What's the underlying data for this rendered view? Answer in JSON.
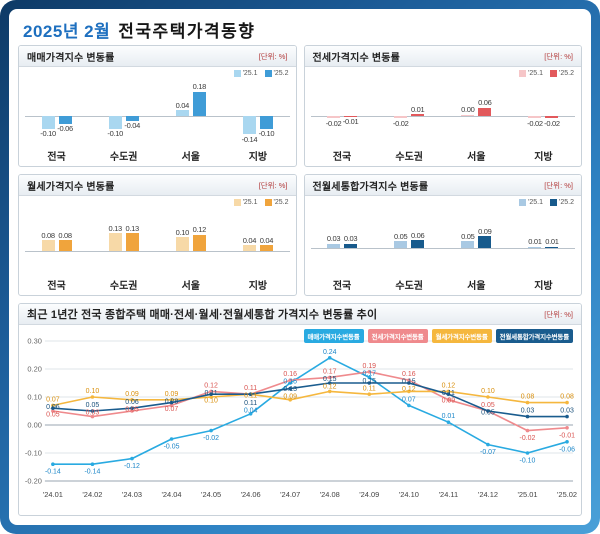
{
  "page": {
    "title_month": "2025년 2월",
    "title_main": "전국주택가격동향"
  },
  "chart_data": [
    {
      "type": "bar",
      "title": "매매가격지수 변동률",
      "unit": "[단위: %]",
      "categories": [
        "전국",
        "수도권",
        "서울",
        "지방"
      ],
      "series": [
        {
          "name": "'25.1",
          "values": [
            -0.1,
            -0.1,
            0.04,
            -0.14
          ]
        },
        {
          "name": "'25.2",
          "values": [
            -0.06,
            -0.04,
            0.18,
            -0.1
          ]
        }
      ],
      "colors": [
        "#a9d7f0",
        "#3f9cd7"
      ]
    },
    {
      "type": "bar",
      "title": "전세가격지수 변동률",
      "unit": "[단위: %]",
      "categories": [
        "전국",
        "수도권",
        "서울",
        "지방"
      ],
      "series": [
        {
          "name": "'25.1",
          "values": [
            -0.02,
            -0.02,
            0.0,
            -0.02
          ]
        },
        {
          "name": "'25.2",
          "values": [
            -0.01,
            0.01,
            0.06,
            -0.02
          ]
        }
      ],
      "colors": [
        "#f6c6c8",
        "#e2595c"
      ]
    },
    {
      "type": "bar",
      "title": "월세가격지수 변동률",
      "unit": "[단위: %]",
      "categories": [
        "전국",
        "수도권",
        "서울",
        "지방"
      ],
      "series": [
        {
          "name": "'25.1",
          "values": [
            0.08,
            0.13,
            0.1,
            0.04
          ]
        },
        {
          "name": "'25.2",
          "values": [
            0.08,
            0.13,
            0.12,
            0.04
          ]
        }
      ],
      "colors": [
        "#f7d9a7",
        "#f0a43c"
      ]
    },
    {
      "type": "bar",
      "title": "전월세통합가격지수 변동률",
      "unit": "[단위: %]",
      "categories": [
        "전국",
        "수도권",
        "서울",
        "지방"
      ],
      "series": [
        {
          "name": "'25.1",
          "values": [
            0.03,
            0.05,
            0.05,
            0.01
          ]
        },
        {
          "name": "'25.2",
          "values": [
            0.03,
            0.06,
            0.09,
            0.01
          ]
        }
      ],
      "colors": [
        "#a9c9e3",
        "#175a8c"
      ]
    },
    {
      "type": "line",
      "title": "최근 1년간 전국 종합주택 매매·전세·월세·전월세통합 가격지수 변동률 추이",
      "unit": "[단위: %]",
      "x": [
        "'24.01",
        "'24.02",
        "'24.03",
        "'24.04",
        "'24.05",
        "'24.06",
        "'24.07",
        "'24.08",
        "'24.09",
        "'24.10",
        "'24.11",
        "'24.12",
        "'25.01",
        "'25.02"
      ],
      "ylim": [
        -0.2,
        0.3
      ],
      "yticks": [
        0.3,
        0.2,
        0.1,
        0.0,
        -0.1,
        -0.2
      ],
      "grid": true,
      "legend_position": "top-right",
      "series": [
        {
          "name": "매매가격지수변동률",
          "color": "#29aae1",
          "label_color": "#1b86c8",
          "values": [
            -0.14,
            -0.14,
            -0.12,
            -0.05,
            -0.02,
            0.04,
            0.15,
            0.24,
            0.17,
            0.07,
            0.01,
            -0.07,
            -0.1,
            -0.06
          ]
        },
        {
          "name": "전세가격지수변동률",
          "color": "#ef8a8d",
          "label_color": "#d9534f",
          "values": [
            0.05,
            0.03,
            0.05,
            0.07,
            0.12,
            0.11,
            0.16,
            0.17,
            0.19,
            0.16,
            0.09,
            0.05,
            -0.02,
            -0.01
          ]
        },
        {
          "name": "월세가격지수변동률",
          "color": "#f5b73e",
          "label_color": "#d98f0c",
          "values": [
            0.07,
            0.1,
            0.09,
            0.09,
            0.1,
            0.11,
            0.09,
            0.12,
            0.11,
            0.12,
            0.12,
            0.1,
            0.08,
            0.08
          ]
        },
        {
          "name": "전월세통합가격지수변동률",
          "color": "#1a5c8e",
          "label_color": "#174f7a",
          "values": [
            0.06,
            0.05,
            0.06,
            0.08,
            0.11,
            0.11,
            0.13,
            0.15,
            0.15,
            0.15,
            0.11,
            0.05,
            0.03,
            0.03
          ]
        }
      ]
    }
  ]
}
